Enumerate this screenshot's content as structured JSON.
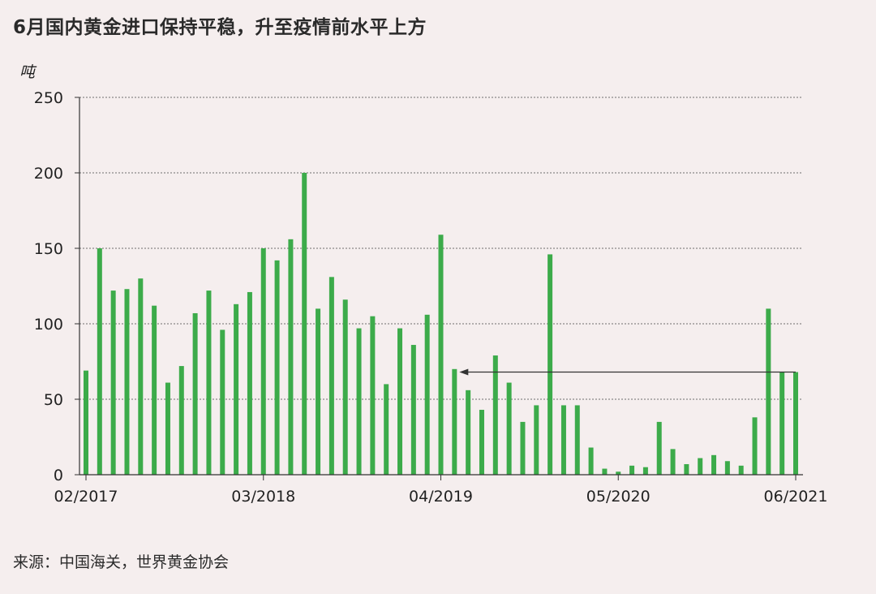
{
  "header": {
    "title": "6月国内黄金进口保持平稳，升至疫情前水平上方"
  },
  "footer": {
    "source": "来源：中国海关，世界黄金协会"
  },
  "chart_data": {
    "type": "bar",
    "title": "6月国内黄金进口保持平稳，升至疫情前水平上方",
    "ylabel": "吨",
    "xlabel": "",
    "ylim": [
      0,
      250
    ],
    "yticks": [
      0,
      50,
      100,
      150,
      200,
      250
    ],
    "grid": true,
    "legend": "none",
    "bar_color": "#3cab4a",
    "categories": [
      "02/2017",
      "03/2017",
      "04/2017",
      "05/2017",
      "06/2017",
      "07/2017",
      "08/2017",
      "09/2017",
      "10/2017",
      "11/2017",
      "12/2017",
      "01/2018",
      "02/2018",
      "03/2018",
      "04/2018",
      "05/2018",
      "06/2018",
      "07/2018",
      "08/2018",
      "09/2018",
      "10/2018",
      "11/2018",
      "12/2018",
      "01/2019",
      "02/2019",
      "03/2019",
      "04/2019",
      "05/2019",
      "06/2019",
      "07/2019",
      "08/2019",
      "09/2019",
      "10/2019",
      "11/2019",
      "12/2019",
      "01/2020",
      "02/2020",
      "03/2020",
      "04/2020",
      "05/2020",
      "06/2020",
      "07/2020",
      "08/2020",
      "09/2020",
      "10/2020",
      "11/2020",
      "12/2020",
      "01/2021",
      "02/2021",
      "03/2021",
      "04/2021",
      "05/2021",
      "06/2021"
    ],
    "values": [
      69,
      150,
      122,
      123,
      130,
      112,
      61,
      72,
      107,
      122,
      96,
      113,
      121,
      150,
      142,
      156,
      200,
      110,
      131,
      116,
      97,
      105,
      60,
      97,
      86,
      106,
      159,
      70,
      56,
      43,
      79,
      61,
      35,
      46,
      146,
      46,
      46,
      18,
      4,
      2,
      6,
      5,
      35,
      17,
      7,
      11,
      13,
      9,
      6,
      38,
      110,
      68,
      68
    ],
    "xtick_labels": [
      "02/2017",
      "03/2018",
      "04/2019",
      "05/2020",
      "06/2021"
    ],
    "annotation": {
      "type": "arrow",
      "value": 68,
      "from_category": "06/2021",
      "to_category": "05/2019"
    }
  }
}
